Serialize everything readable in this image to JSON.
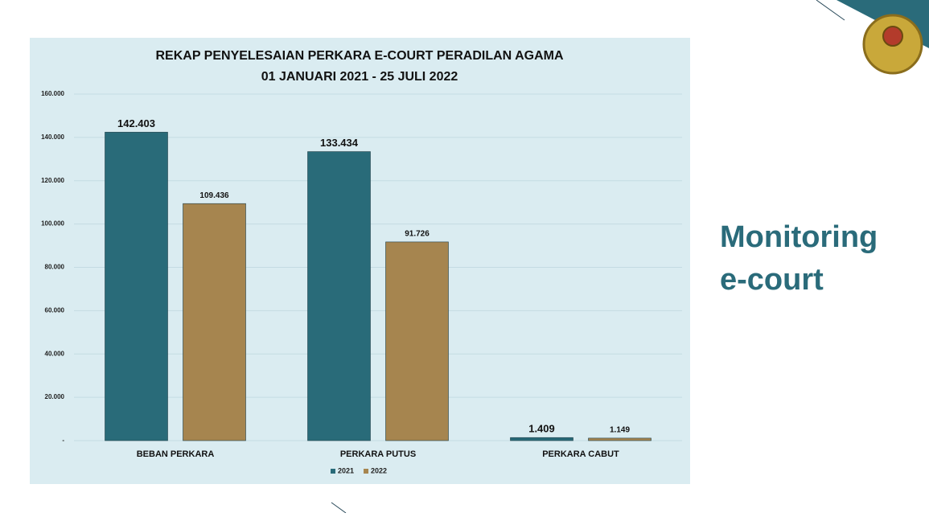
{
  "slide": {
    "heading_lines": [
      "Monitoring",
      "e-court"
    ]
  },
  "chart_data": {
    "type": "bar",
    "title_lines": [
      "REKAP PENYELESAIAN PERKARA E-COURT PERADILAN AGAMA",
      "01 JANUARI 2021 - 25 JULI 2022"
    ],
    "categories": [
      "BEBAN PERKARA",
      "PERKARA PUTUS",
      "PERKARA CABUT"
    ],
    "series": [
      {
        "name": "2021",
        "color": "#296b79",
        "values": [
          142403,
          133434,
          1409
        ],
        "value_labels": [
          "142.403",
          "133.434",
          "1.409"
        ]
      },
      {
        "name": "2022",
        "color": "#a6854f",
        "values": [
          109436,
          91726,
          1149
        ],
        "value_labels": [
          "109.436",
          "91.726",
          "1.149"
        ]
      }
    ],
    "ylim": [
      0,
      160000
    ],
    "yticks": [
      {
        "value": 0,
        "label": "-"
      },
      {
        "value": 20000,
        "label": "20.000"
      },
      {
        "value": 40000,
        "label": "40.000"
      },
      {
        "value": 60000,
        "label": "60.000"
      },
      {
        "value": 80000,
        "label": "80.000"
      },
      {
        "value": 100000,
        "label": "100.000"
      },
      {
        "value": 120000,
        "label": "120.000"
      },
      {
        "value": 140000,
        "label": "140.000"
      },
      {
        "value": 160000,
        "label": "160.000"
      }
    ],
    "grid": true,
    "legend": "bottom"
  }
}
